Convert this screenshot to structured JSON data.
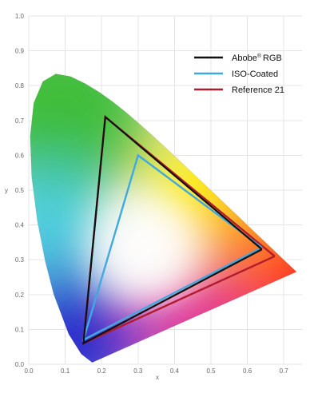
{
  "chart_data": {
    "type": "line",
    "title": "",
    "xlabel": "x",
    "ylabel": "y",
    "xlim": [
      0.0,
      0.75
    ],
    "ylim": [
      0.0,
      1.0
    ],
    "grid": true,
    "legend_position": "top-right",
    "x_ticks": [
      "0.0",
      "0.1",
      "0.2",
      "0.3",
      "0.4",
      "0.5",
      "0.6",
      "0.7"
    ],
    "y_ticks": [
      "0.0",
      "0.1",
      "0.2",
      "0.3",
      "0.4",
      "0.5",
      "0.6",
      "0.7",
      "0.8",
      "0.9",
      "1.0"
    ],
    "legend_labels": {
      "adobe": "Abobe",
      "adobe_mark": "®",
      "adobe_suffix": "RGB",
      "iso": "ISO-Coated",
      "ref": "Reference 21"
    },
    "series": [
      {
        "name": "Abobe® RGB",
        "color": "#111111",
        "x": [
          0.64,
          0.21,
          0.15,
          0.64
        ],
        "y": [
          0.33,
          0.71,
          0.06,
          0.33
        ]
      },
      {
        "name": "ISO-Coated",
        "color": "#3fa9e0",
        "x": [
          0.64,
          0.3,
          0.15,
          0.64
        ],
        "y": [
          0.335,
          0.6,
          0.07,
          0.335
        ]
      },
      {
        "name": "Reference 21",
        "color": "#b01c2e",
        "x": [
          0.675,
          0.21,
          0.15,
          0.675
        ],
        "y": [
          0.31,
          0.71,
          0.06,
          0.31
        ]
      }
    ],
    "spectral_locus": {
      "x": [
        0.1741,
        0.144,
        0.1096,
        0.0687,
        0.0454,
        0.0235,
        0.0082,
        0.0039,
        0.0139,
        0.0389,
        0.0743,
        0.1142,
        0.1547,
        0.1929,
        0.2296,
        0.2658,
        0.3016,
        0.3373,
        0.3731,
        0.4087,
        0.4441,
        0.4788,
        0.5125,
        0.5448,
        0.5752,
        0.6029,
        0.627,
        0.6482,
        0.6658,
        0.6915,
        0.7147,
        0.7347
      ],
      "y": [
        0.005,
        0.0297,
        0.0868,
        0.2007,
        0.295,
        0.4127,
        0.5384,
        0.6548,
        0.7502,
        0.812,
        0.8338,
        0.8262,
        0.8059,
        0.7816,
        0.7543,
        0.7243,
        0.6923,
        0.6589,
        0.6245,
        0.5896,
        0.5547,
        0.5202,
        0.4866,
        0.4544,
        0.4242,
        0.3965,
        0.3725,
        0.3514,
        0.334,
        0.3083,
        0.2853,
        0.2653
      ]
    }
  },
  "colors": {
    "red_primary": "#ff0020",
    "green_primary": "#3fbd3a",
    "blue_primary": "#2a2fcc",
    "white_point": "#ffffff"
  }
}
